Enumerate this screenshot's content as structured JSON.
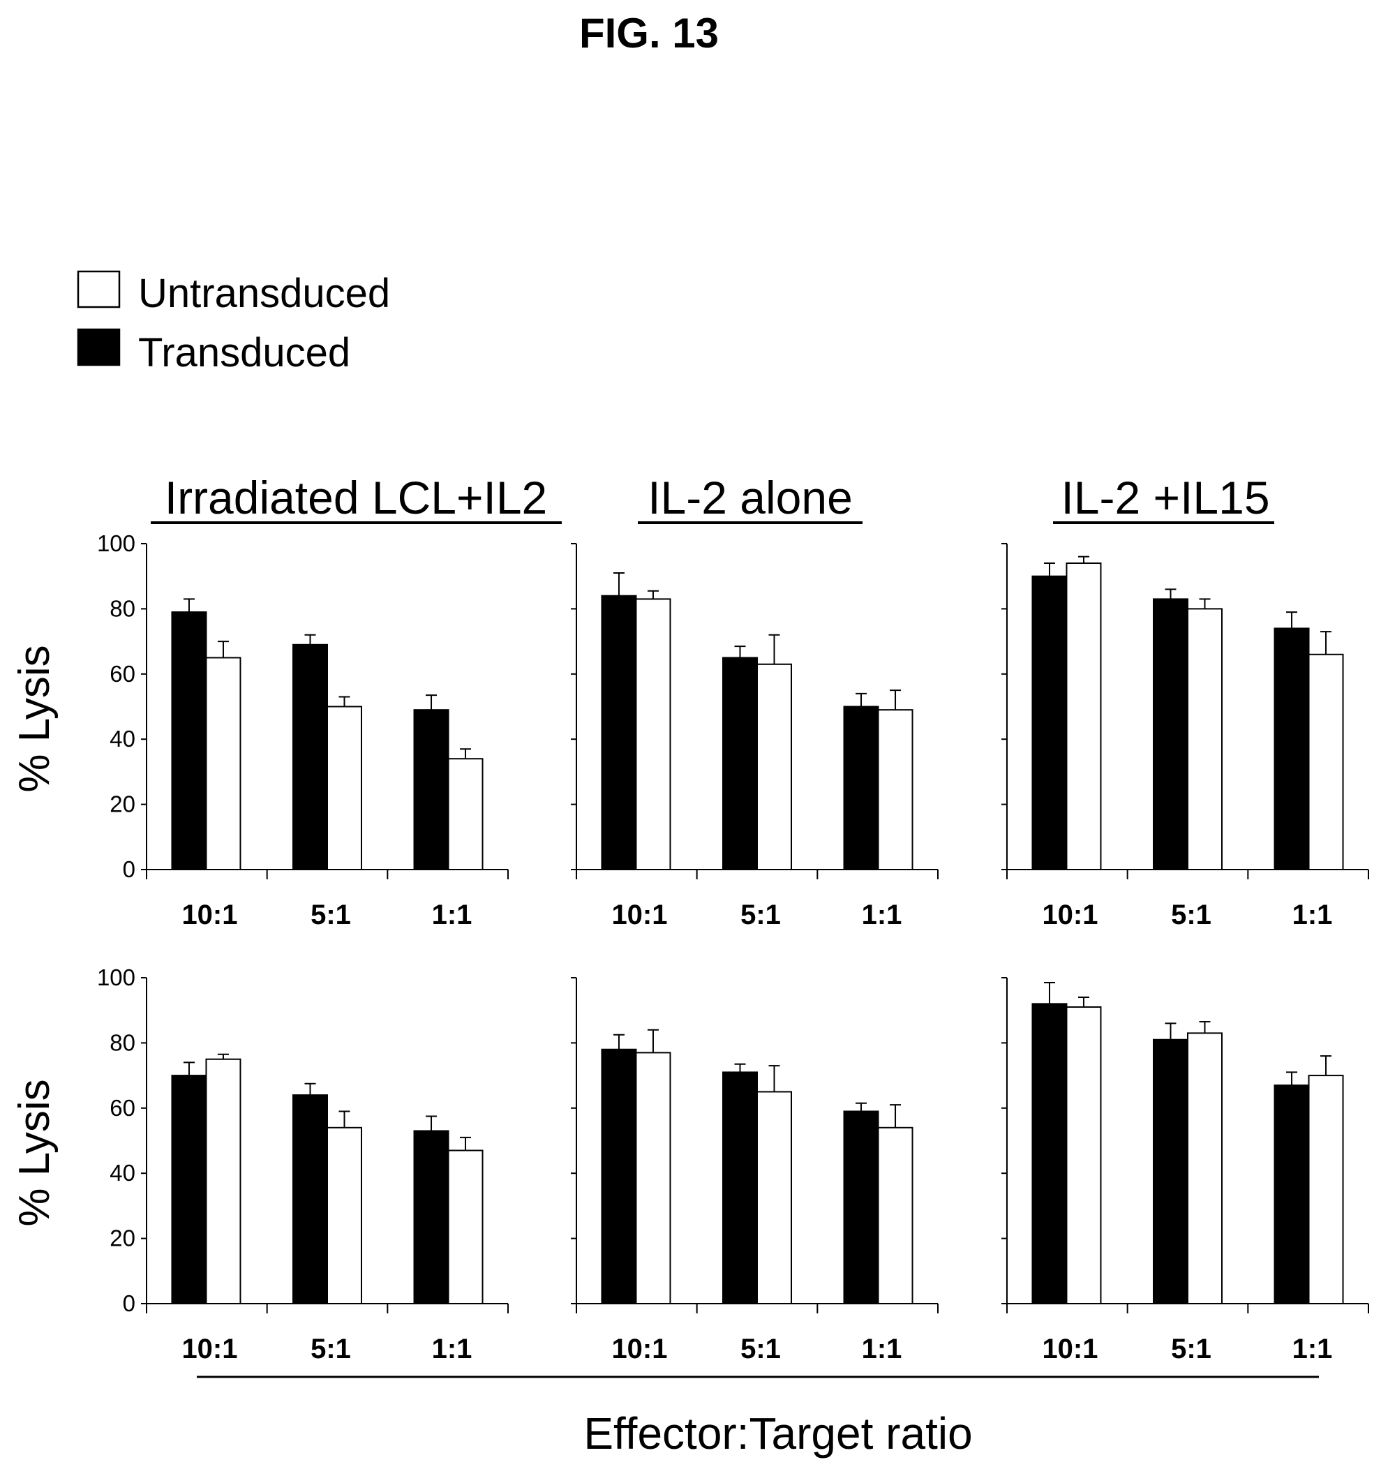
{
  "figure_label": "FIG. 13",
  "legend": [
    {
      "label": "Untransduced",
      "color": "#ffffff"
    },
    {
      "label": "Transduced",
      "color": "#000000"
    }
  ],
  "x_axis_title": "Effector:Target ratio",
  "y_axis_label": "% Lysis",
  "column_titles": [
    "Irradiated LCL+IL2",
    "IL-2 alone",
    "IL-2 +IL15"
  ],
  "chart_data": [
    {
      "type": "bar",
      "row": 0,
      "col": 0,
      "categories": [
        "10:1",
        "5:1",
        "1:1"
      ],
      "ylabel": "% Lysis",
      "ylim": [
        0,
        100
      ],
      "yticks": [
        0,
        20,
        40,
        60,
        80,
        100
      ],
      "series": [
        {
          "name": "Transduced",
          "values": [
            79,
            69,
            49
          ],
          "errors": [
            4,
            3,
            4.5
          ]
        },
        {
          "name": "Untransduced",
          "values": [
            65,
            50,
            34
          ],
          "errors": [
            5,
            3,
            3
          ]
        }
      ]
    },
    {
      "type": "bar",
      "row": 0,
      "col": 1,
      "categories": [
        "10:1",
        "5:1",
        "1:1"
      ],
      "ylim": [
        0,
        100
      ],
      "yticks": [
        0,
        20,
        40,
        60,
        80,
        100
      ],
      "series": [
        {
          "name": "Transduced",
          "values": [
            84,
            65,
            50
          ],
          "errors": [
            7,
            3.5,
            4
          ]
        },
        {
          "name": "Untransduced",
          "values": [
            83,
            63,
            49
          ],
          "errors": [
            2.5,
            9,
            6
          ]
        }
      ]
    },
    {
      "type": "bar",
      "row": 0,
      "col": 2,
      "categories": [
        "10:1",
        "5:1",
        "1:1"
      ],
      "ylim": [
        0,
        100
      ],
      "yticks": [
        0,
        20,
        40,
        60,
        80,
        100
      ],
      "series": [
        {
          "name": "Transduced",
          "values": [
            90,
            83,
            74
          ],
          "errors": [
            4,
            3,
            5
          ]
        },
        {
          "name": "Untransduced",
          "values": [
            94,
            80,
            66
          ],
          "errors": [
            2,
            3,
            7
          ]
        }
      ]
    },
    {
      "type": "bar",
      "row": 1,
      "col": 0,
      "categories": [
        "10:1",
        "5:1",
        "1:1"
      ],
      "ylabel": "% Lysis",
      "ylim": [
        0,
        100
      ],
      "yticks": [
        0,
        20,
        40,
        60,
        80,
        100
      ],
      "series": [
        {
          "name": "Transduced",
          "values": [
            70,
            64,
            53
          ],
          "errors": [
            4,
            3.5,
            4.5
          ]
        },
        {
          "name": "Untransduced",
          "values": [
            75,
            54,
            47
          ],
          "errors": [
            1.5,
            5,
            4
          ]
        }
      ]
    },
    {
      "type": "bar",
      "row": 1,
      "col": 1,
      "categories": [
        "10:1",
        "5:1",
        "1:1"
      ],
      "ylim": [
        0,
        100
      ],
      "yticks": [
        0,
        20,
        40,
        60,
        80,
        100
      ],
      "series": [
        {
          "name": "Transduced",
          "values": [
            78,
            71,
            59
          ],
          "errors": [
            4.5,
            2.5,
            2.5
          ]
        },
        {
          "name": "Untransduced",
          "values": [
            77,
            65,
            54
          ],
          "errors": [
            7,
            8,
            7
          ]
        }
      ]
    },
    {
      "type": "bar",
      "row": 1,
      "col": 2,
      "categories": [
        "10:1",
        "5:1",
        "1:1"
      ],
      "ylim": [
        0,
        100
      ],
      "yticks": [
        0,
        20,
        40,
        60,
        80,
        100
      ],
      "series": [
        {
          "name": "Transduced",
          "values": [
            92,
            81,
            67
          ],
          "errors": [
            6.5,
            5,
            4
          ]
        },
        {
          "name": "Untransduced",
          "values": [
            91,
            83,
            70
          ],
          "errors": [
            3,
            3.5,
            6
          ]
        }
      ]
    }
  ]
}
